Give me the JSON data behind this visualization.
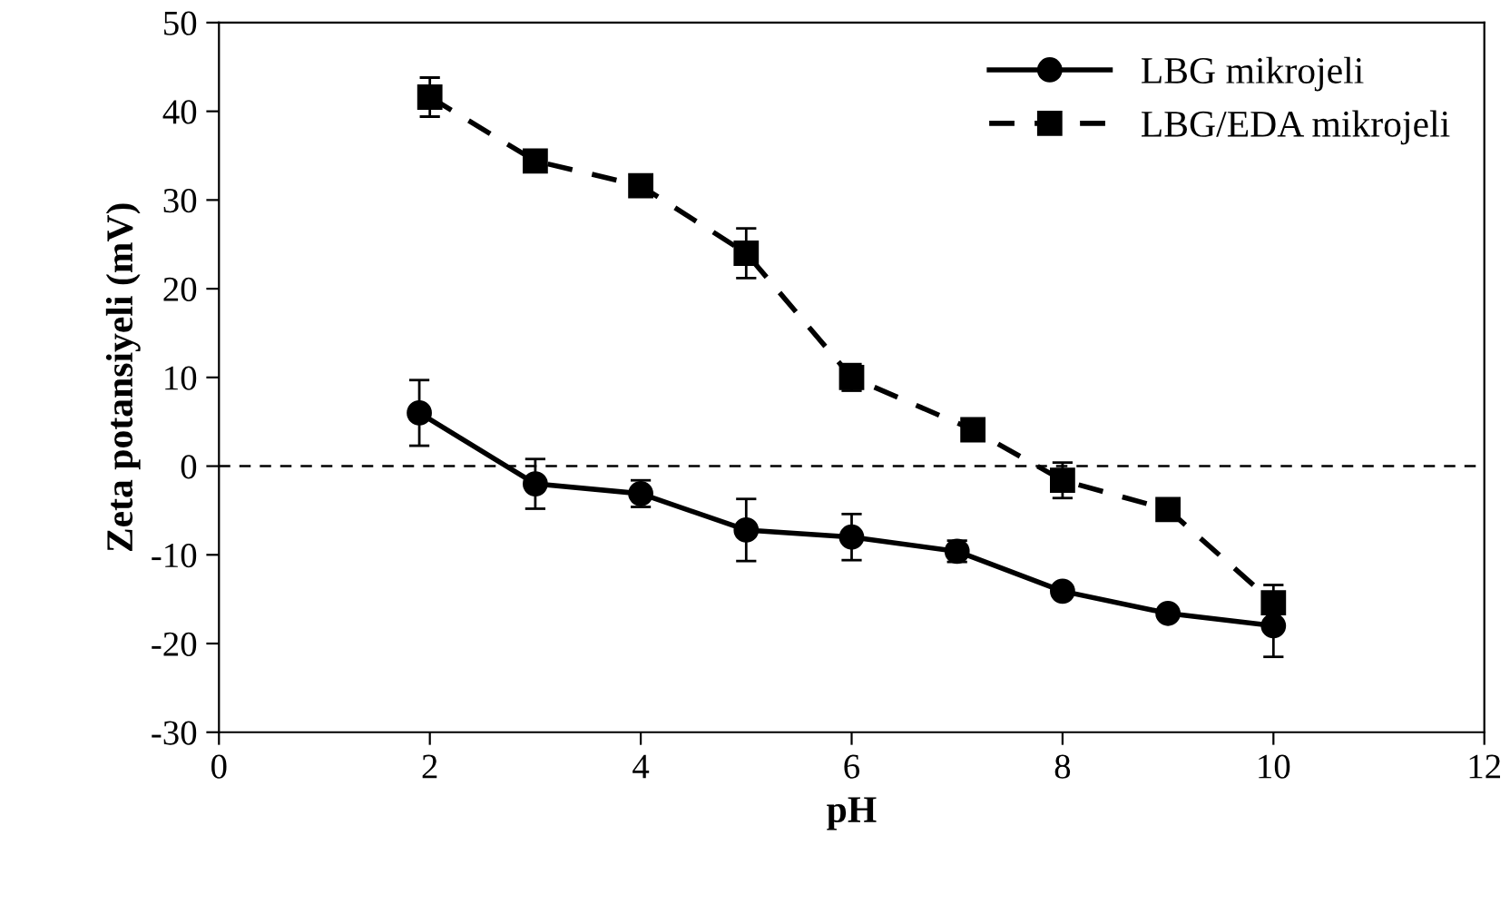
{
  "chart_data": {
    "type": "line",
    "xlabel": "pH",
    "ylabel": "Zeta potansiyeli (mV)",
    "xlim": [
      0,
      12
    ],
    "xticks": [
      0,
      2,
      4,
      6,
      8,
      10,
      12
    ],
    "ylim": [
      -30,
      50
    ],
    "yticks": [
      -30,
      -20,
      -10,
      0,
      10,
      20,
      30,
      40,
      50
    ],
    "grid": false,
    "legend": "top right",
    "ref_lines": [
      {
        "axis": "y",
        "value": 0,
        "line_style": "dashed",
        "color": "#000000"
      }
    ],
    "series": [
      {
        "name": "LBG mikrojeli",
        "color": "#000000",
        "marker": "circle",
        "line_style": "solid",
        "x": [
          1.9,
          3,
          4,
          5,
          6,
          7,
          8,
          9,
          10
        ],
        "values": [
          6,
          -2,
          -3.1,
          -7.2,
          -8,
          -9.6,
          -14.1,
          -16.6,
          -18
        ],
        "errors": [
          3.7,
          2.8,
          1.5,
          3.5,
          2.6,
          1.2,
          null,
          null,
          3.5
        ]
      },
      {
        "name": "LBG/EDA mikrojeli",
        "color": "#000000",
        "marker": "square",
        "line_style": "dashed",
        "x": [
          2,
          3,
          4,
          5,
          6,
          7.15,
          8,
          9,
          10
        ],
        "values": [
          41.6,
          34.4,
          31.6,
          24,
          10,
          4.1,
          -1.6,
          -4.9,
          -15.4
        ],
        "errors": [
          2.2,
          null,
          null,
          2.8,
          1.5,
          1,
          2,
          1,
          2
        ]
      }
    ]
  }
}
